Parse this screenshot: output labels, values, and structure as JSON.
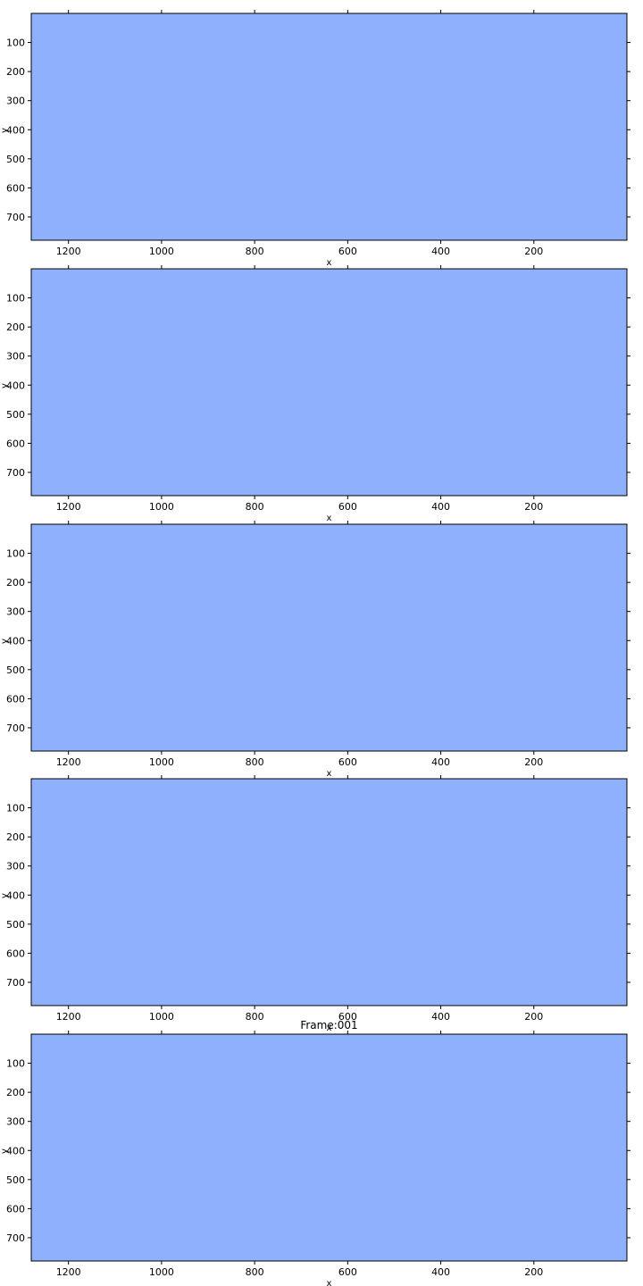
{
  "figure": {
    "background": "#ffffff"
  },
  "chart_data": [
    {
      "type": "heatmap",
      "title": "",
      "xlabel": "x",
      "ylabel": "y",
      "xlim": [
        1280,
        0
      ],
      "ylim": [
        780,
        0
      ],
      "xticks": [
        1200,
        1000,
        800,
        600,
        400,
        200
      ],
      "yticks": [
        100,
        200,
        300,
        400,
        500,
        600,
        700
      ],
      "fill_color": "#8eb0fd",
      "grid": false
    },
    {
      "type": "heatmap",
      "title": "",
      "xlabel": "x",
      "ylabel": "y",
      "xlim": [
        1280,
        0
      ],
      "ylim": [
        780,
        0
      ],
      "xticks": [
        1200,
        1000,
        800,
        600,
        400,
        200
      ],
      "yticks": [
        100,
        200,
        300,
        400,
        500,
        600,
        700
      ],
      "fill_color": "#8eb0fd",
      "grid": false
    },
    {
      "type": "heatmap",
      "title": "",
      "xlabel": "x",
      "ylabel": "y",
      "xlim": [
        1280,
        0
      ],
      "ylim": [
        780,
        0
      ],
      "xticks": [
        1200,
        1000,
        800,
        600,
        400,
        200
      ],
      "yticks": [
        100,
        200,
        300,
        400,
        500,
        600,
        700
      ],
      "fill_color": "#8eb0fd",
      "grid": false
    },
    {
      "type": "heatmap",
      "title": "",
      "xlabel": "x",
      "ylabel": "y",
      "xlim": [
        1280,
        0
      ],
      "ylim": [
        780,
        0
      ],
      "xticks": [
        1200,
        1000,
        800,
        600,
        400,
        200
      ],
      "yticks": [
        100,
        200,
        300,
        400,
        500,
        600,
        700
      ],
      "fill_color": "#8eb0fd",
      "grid": false
    },
    {
      "type": "heatmap",
      "title": "Frame:001",
      "xlabel": "x",
      "ylabel": "y",
      "xlim": [
        1280,
        0
      ],
      "ylim": [
        780,
        0
      ],
      "xticks": [
        1200,
        1000,
        800,
        600,
        400,
        200
      ],
      "yticks": [
        100,
        200,
        300,
        400,
        500,
        600,
        700
      ],
      "fill_color": "#8eb0fd",
      "grid": false
    }
  ]
}
